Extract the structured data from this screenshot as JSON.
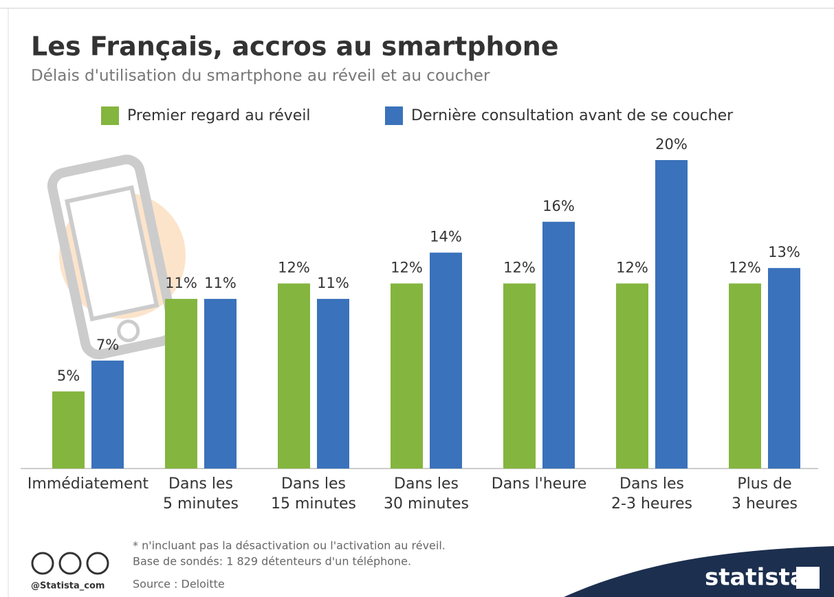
{
  "chart_data": {
    "type": "bar",
    "title": "Les Français, accros au smartphone",
    "subtitle": "Délais d'utilisation du smartphone au réveil et au coucher",
    "categories": [
      "Immédiatement",
      "Dans les\n5 minutes",
      "Dans les\n15 minutes",
      "Dans les\n30 minutes",
      "Dans l'heure",
      "Dans les\n2-3 heures",
      "Plus de\n3 heures"
    ],
    "series": [
      {
        "name": "Premier regard au réveil",
        "color": "#84b53f",
        "values": [
          5,
          11,
          12,
          12,
          12,
          12,
          12
        ],
        "value_labels": [
          "5%",
          "11%",
          "12%",
          "12%",
          "12%",
          "12%",
          "12%"
        ]
      },
      {
        "name": "Dernière consultation avant de se coucher",
        "color": "#3a72bb",
        "values": [
          7,
          11,
          11,
          14,
          16,
          20,
          13
        ],
        "value_labels": [
          "7%",
          "11%",
          "11%",
          "14%",
          "16%",
          "20%",
          "13%"
        ]
      }
    ],
    "ylim": [
      0,
      20
    ],
    "footnotes": [
      "* n'incluant pas la désactivation ou l'activation au réveil.",
      "Base de sondés: 1 829 détenteurs d'un téléphone."
    ],
    "source": "Source : Deloitte",
    "credit": "@Statista_com",
    "brand": "statista"
  }
}
